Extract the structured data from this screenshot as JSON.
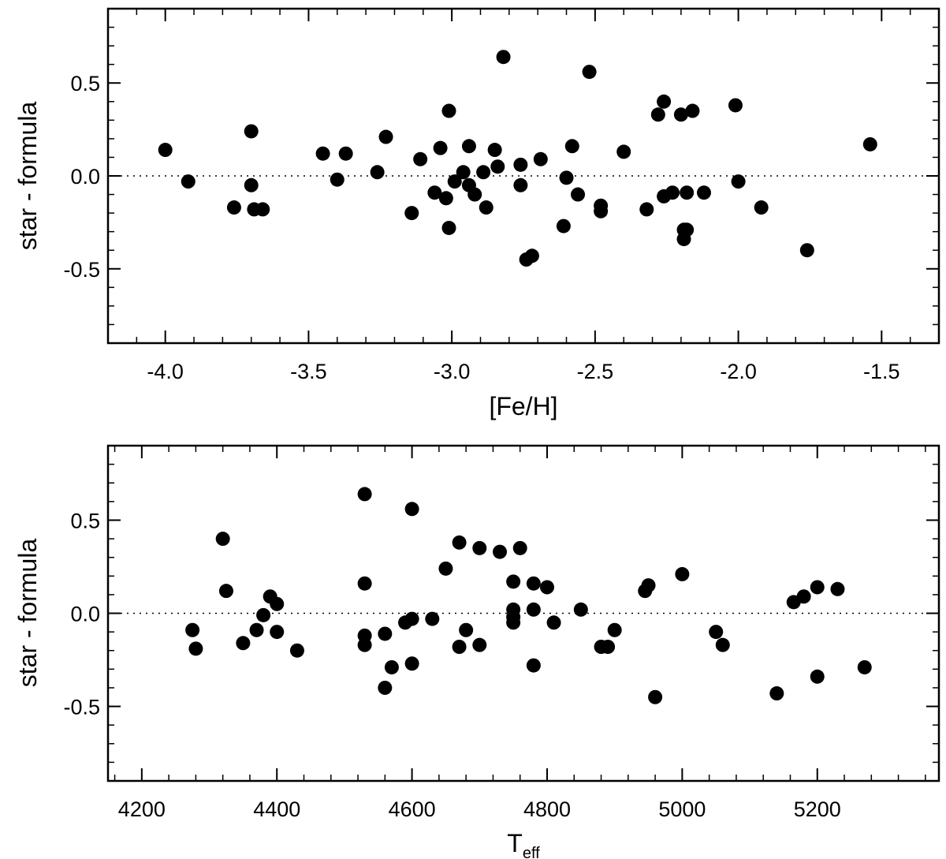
{
  "chart_data": [
    {
      "type": "scatter",
      "xlabel": "[Fe/H]",
      "ylabel": "star - formula",
      "xlim": [
        -4.2,
        -1.3
      ],
      "ylim": [
        -0.9,
        0.9
      ],
      "xticks": [
        -4.0,
        -3.5,
        -3.0,
        -2.5,
        -2.0,
        -1.5
      ],
      "xtick_labels": [
        "-4.0",
        "-3.5",
        "-3.0",
        "-2.5",
        "-2.0",
        "-1.5"
      ],
      "yticks": [
        -0.5,
        0.0,
        0.5
      ],
      "ytick_labels": [
        "-0.5",
        "0.0",
        "0.5"
      ],
      "reference_line": 0.0,
      "grid": false,
      "series": [
        {
          "color": "#000000",
          "x": [
            -4.0,
            -3.92,
            -3.76,
            -3.7,
            -3.7,
            -3.69,
            -3.66,
            -3.45,
            -3.4,
            -3.37,
            -3.26,
            -3.23,
            -3.14,
            -3.11,
            -3.06,
            -3.04,
            -3.02,
            -3.01,
            -3.01,
            -2.99,
            -2.96,
            -2.94,
            -2.94,
            -2.92,
            -2.89,
            -2.88,
            -2.85,
            -2.84,
            -2.82,
            -2.76,
            -2.76,
            -2.74,
            -2.72,
            -2.69,
            -2.61,
            -2.6,
            -2.58,
            -2.56,
            -2.52,
            -2.48,
            -2.48,
            -2.4,
            -2.32,
            -2.28,
            -2.26,
            -2.26,
            -2.23,
            -2.2,
            -2.19,
            -2.19,
            -2.18,
            -2.18,
            -2.16,
            -2.12,
            -2.01,
            -2.0,
            -1.92,
            -1.76,
            -1.54
          ],
          "y": [
            0.14,
            -0.03,
            -0.17,
            0.24,
            -0.05,
            -0.18,
            -0.18,
            0.12,
            -0.02,
            0.12,
            0.02,
            0.21,
            -0.2,
            0.09,
            -0.09,
            0.15,
            -0.12,
            0.35,
            -0.28,
            -0.03,
            0.02,
            0.16,
            -0.05,
            -0.1,
            0.02,
            -0.17,
            0.14,
            0.05,
            0.64,
            0.06,
            -0.05,
            -0.45,
            -0.43,
            0.09,
            -0.27,
            -0.01,
            0.16,
            -0.1,
            0.56,
            -0.16,
            -0.19,
            0.13,
            -0.18,
            0.33,
            0.4,
            -0.11,
            -0.09,
            0.33,
            -0.29,
            -0.34,
            -0.09,
            -0.29,
            0.35,
            -0.09,
            0.38,
            -0.03,
            -0.17,
            -0.4,
            0.17
          ]
        }
      ]
    },
    {
      "type": "scatter",
      "xlabel": "T",
      "xlabel_sub": "eff",
      "ylabel": "star - formula",
      "xlim": [
        4150,
        5380
      ],
      "ylim": [
        -0.9,
        0.9
      ],
      "xticks": [
        4200,
        4400,
        4600,
        4800,
        5000,
        5200
      ],
      "xtick_labels": [
        "4200",
        "4400",
        "4600",
        "4800",
        "5000",
        "5200"
      ],
      "yticks": [
        -0.5,
        0.0,
        0.5
      ],
      "ytick_labels": [
        "-0.5",
        "0.0",
        "0.5"
      ],
      "reference_line": 0.0,
      "grid": false,
      "series": [
        {
          "color": "#000000",
          "x": [
            4275,
            4280,
            4320,
            4325,
            4350,
            4370,
            4380,
            4390,
            4400,
            4400,
            4430,
            4530,
            4530,
            4530,
            4530,
            4560,
            4560,
            4570,
            4590,
            4600,
            4600,
            4600,
            4630,
            4650,
            4670,
            4670,
            4680,
            4700,
            4700,
            4730,
            4750,
            4750,
            4750,
            4750,
            4760,
            4780,
            4780,
            4780,
            4800,
            4810,
            4850,
            4880,
            4890,
            4900,
            4945,
            4950,
            4960,
            5000,
            5050,
            5060,
            5140,
            5165,
            5180,
            5200,
            5200,
            5230,
            5270
          ],
          "y": [
            -0.09,
            -0.19,
            0.4,
            0.12,
            -0.16,
            -0.09,
            -0.01,
            0.09,
            0.05,
            -0.1,
            -0.2,
            0.64,
            0.16,
            -0.12,
            -0.17,
            -0.11,
            -0.4,
            -0.29,
            -0.05,
            0.56,
            -0.03,
            -0.27,
            -0.03,
            0.24,
            0.38,
            -0.18,
            -0.09,
            0.35,
            -0.17,
            0.33,
            0.17,
            0.02,
            -0.02,
            -0.05,
            0.35,
            0.16,
            0.02,
            -0.28,
            0.14,
            -0.05,
            0.02,
            -0.18,
            -0.18,
            -0.09,
            0.12,
            0.15,
            -0.45,
            0.21,
            -0.1,
            -0.17,
            -0.43,
            0.06,
            0.09,
            0.14,
            -0.34,
            0.13,
            -0.29
          ]
        }
      ]
    }
  ]
}
